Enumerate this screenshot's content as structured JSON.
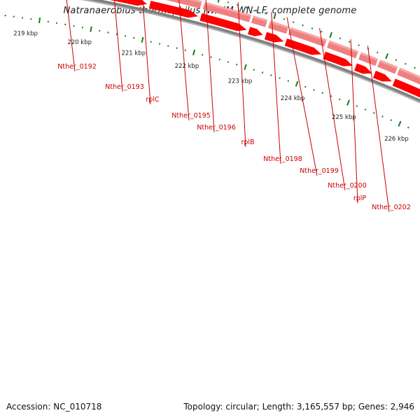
{
  "title": "Natranaerobius thermophilus JW/NM-WN-LF, complete genome",
  "footer": {
    "accession": "Accession: NC_010718",
    "summary": "Topology: circular; Length: 3,165,557 bp; Genes: 2,946"
  },
  "scale": {
    "labels": [
      "219 kbp",
      "220 kbp",
      "221 kbp",
      "222 kbp",
      "223 kbp",
      "224 kbp",
      "225 kbp",
      "226 kbp"
    ]
  },
  "genes": [
    {
      "name": "Nther_0192"
    },
    {
      "name": "Nther_0193"
    },
    {
      "name": "rplC"
    },
    {
      "name": "Nther_0195"
    },
    {
      "name": "Nther_0196"
    },
    {
      "name": "rplB"
    },
    {
      "name": "Nther_0198"
    },
    {
      "name": "Nther_0199"
    },
    {
      "name": "Nther_0200"
    },
    {
      "name": "rplP"
    },
    {
      "name": "Nther_0202"
    }
  ],
  "colors": {
    "gene_outer": "#f08080",
    "gene_arrow": "#ff0000",
    "backbone": "#808080",
    "tick": "#1a7a1a",
    "label": "#cc0000"
  }
}
